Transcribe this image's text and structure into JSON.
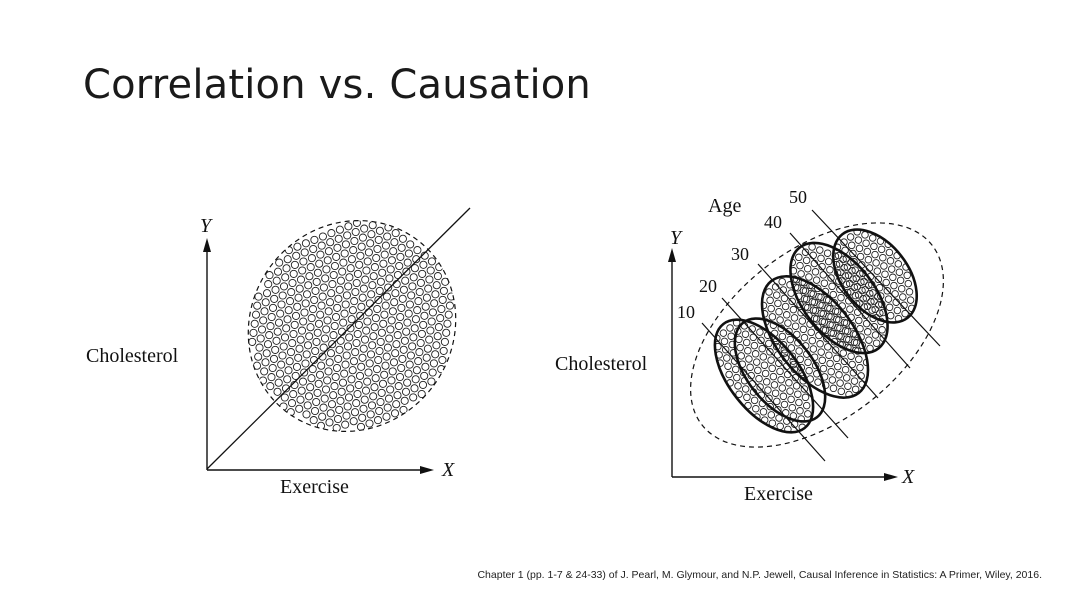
{
  "slide": {
    "title": "Correlation vs. Causation",
    "caption": "Chapter 1 (pp. 1-7 & 24-33) of J. Pearl, M. Glymour, and N.P. Jewell, Causal Inference in Statistics: A Primer, Wiley, 2016."
  },
  "left_figure": {
    "y_axis_letter": "Y",
    "x_axis_letter": "X",
    "y_label": "Cholesterol",
    "x_label": "Exercise"
  },
  "right_figure": {
    "y_axis_letter": "Y",
    "x_axis_letter": "X",
    "y_label": "Cholesterol",
    "x_label": "Exercise",
    "group_title": "Age",
    "age_groups": [
      "10",
      "20",
      "30",
      "40",
      "50"
    ]
  }
}
